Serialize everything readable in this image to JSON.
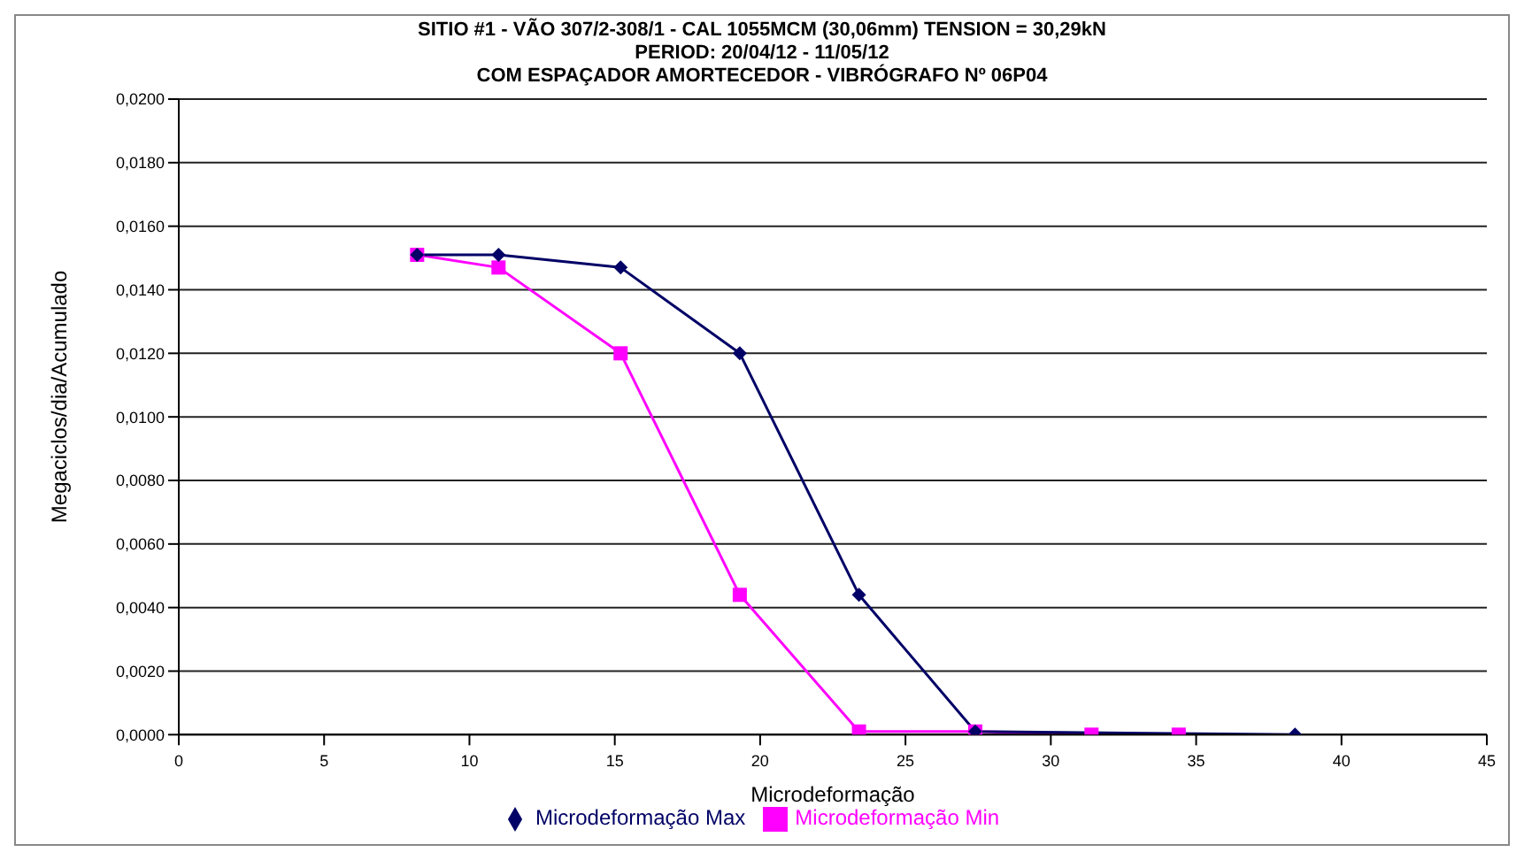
{
  "chart_data": {
    "type": "line",
    "title": "SITIO #1 - VÃO 307/2-308/1 - CAL 1055MCM (30,06mm) TENSION = 30,29kN",
    "subtitle": "PERIOD: 20/04/12 - 11/05/12\nCOM ESPAÇADOR AMORTECEDOR - VIBRÓGRAFO Nº 06P04",
    "xlabel": "Microdeformação",
    "ylabel": "Megaciclos/dia/Acumulado",
    "series": [
      {
        "name": "Microdeformação Max",
        "color": "#000066",
        "marker": "diamond",
        "x": [
          8.2,
          11,
          15.2,
          19.3,
          23.4,
          27.4,
          38.4
        ],
        "values": [
          0.0151,
          0.0151,
          0.0147,
          0.012,
          0.0044,
          0.0001,
          0
        ]
      },
      {
        "name": "Microdeformação Min",
        "color": "#ff00ff",
        "marker": "square",
        "x": [
          8.2,
          11,
          15.2,
          19.3,
          23.4,
          27.4,
          31.4,
          34.4
        ],
        "values": [
          0.0151,
          0.0147,
          0.012,
          0.0044,
          0.0001,
          0.0001,
          0,
          0
        ]
      }
    ],
    "xlim": [
      0,
      45
    ],
    "xticks": [
      0,
      5,
      10,
      15,
      20,
      25,
      30,
      35,
      40,
      45
    ],
    "ylim": [
      0,
      0.02
    ],
    "yticks": [
      {
        "value": 0,
        "label": "0,0000"
      },
      {
        "value": 0.002,
        "label": "0,0020"
      },
      {
        "value": 0.004,
        "label": "0,0040"
      },
      {
        "value": 0.006,
        "label": "0,0060"
      },
      {
        "value": 0.008,
        "label": "0,0080"
      },
      {
        "value": 0.01,
        "label": "0,0100"
      },
      {
        "value": 0.012,
        "label": "0,0120"
      },
      {
        "value": 0.014,
        "label": "0,0140"
      },
      {
        "value": 0.016,
        "label": "0,0160"
      },
      {
        "value": 0.018,
        "label": "0,0180"
      },
      {
        "value": 0.02,
        "label": "0,0200"
      }
    ],
    "grid": "y",
    "legend": "bottom"
  }
}
